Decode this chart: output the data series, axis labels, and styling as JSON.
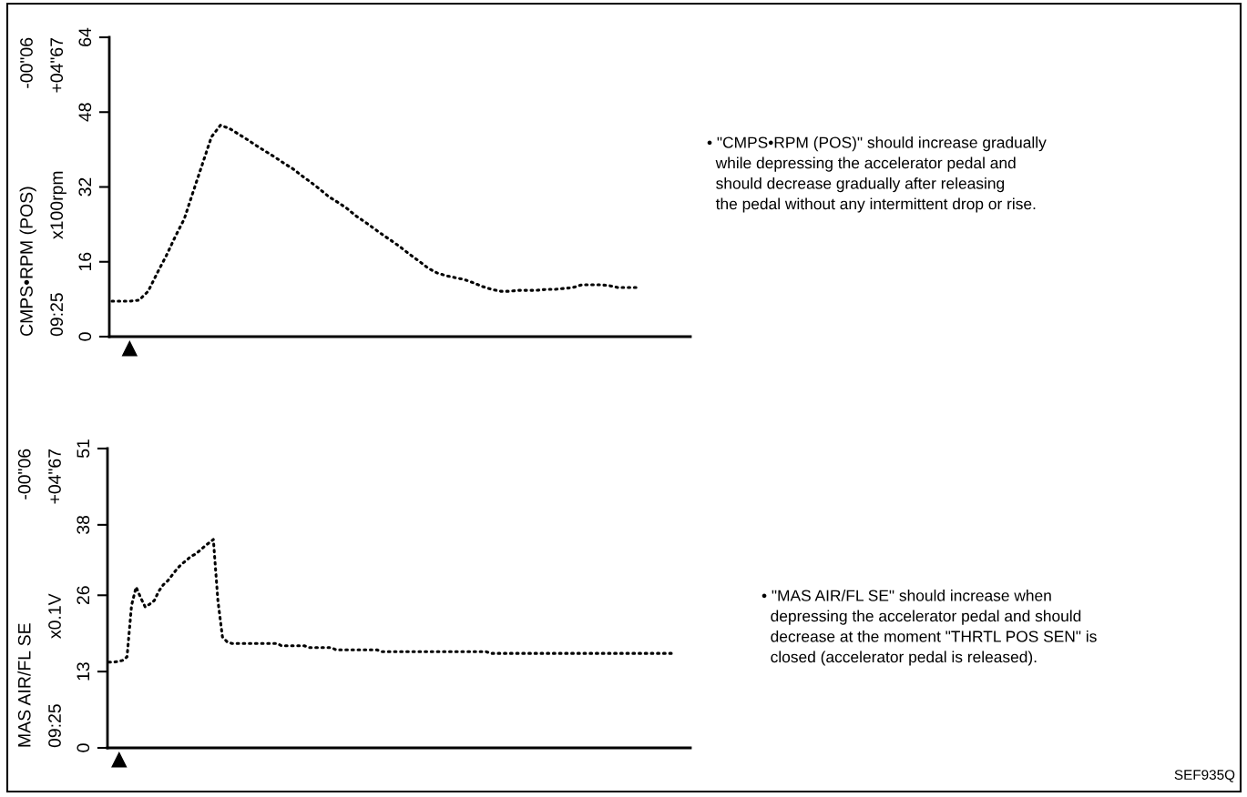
{
  "chart_data": [
    {
      "type": "line",
      "ylabel": "CMPS•RPM (POS)",
      "line_style": "dotted",
      "tick_labels": "y",
      "categories": [
        null,
        null,
        null,
        null,
        null,
        null,
        null,
        null,
        null,
        null,
        null,
        null,
        null,
        null,
        null,
        null,
        null,
        null,
        null,
        null,
        null,
        null,
        null,
        null,
        null,
        null,
        null,
        null,
        null,
        null,
        null,
        null,
        null,
        null,
        null,
        null,
        null,
        null,
        null,
        null,
        null,
        null,
        null,
        null,
        null,
        null,
        null,
        null,
        null,
        null,
        null,
        null,
        null,
        null,
        null,
        null,
        null,
        null,
        null,
        null,
        null,
        null,
        null,
        null,
        null
      ],
      "series": [
        {
          "color": "#000000",
          "values": [
            7.6,
            7.6,
            7.6,
            7.8,
            9.7,
            13.6,
            17.3,
            21.4,
            25.2,
            31.1,
            36.9,
            42.7,
            45.2,
            44.5,
            43.3,
            42.1,
            40.8,
            39.6,
            38.4,
            37.1,
            35.9,
            34.4,
            33.0,
            31.5,
            29.9,
            28.7,
            27.4,
            25.8,
            24.5,
            23.1,
            21.7,
            20.4,
            19.0,
            17.5,
            16.1,
            14.6,
            13.6,
            13.0,
            12.6,
            12.2,
            11.5,
            10.7,
            10.1,
            9.7,
            9.7,
            9.9,
            9.9,
            9.9,
            10.1,
            10.1,
            10.3,
            10.5,
            11.1,
            11.1,
            11.1,
            10.9,
            10.5,
            10.5,
            10.5,
            null,
            null,
            null,
            null,
            null,
            null
          ]
        }
      ],
      "ylim": [
        0,
        64
      ],
      "yticks": [
        0,
        16,
        32,
        48,
        64
      ],
      "annotations": [
        "-00\"06",
        "09:25",
        "x100rpm",
        "+04\"67",
        "• \"CMPS•RPM (POS)\" should increase gradually\n  while depressing the accelerator pedal and\n  should decrease gradually after releasing\n  the pedal without any intermittent drop or rise."
      ]
    },
    {
      "type": "line",
      "ylabel": "MAS AIR/FL SE",
      "line_style": "dotted",
      "tick_labels": "y",
      "categories": [
        null,
        null,
        null,
        null,
        null,
        null,
        null,
        null,
        null,
        null,
        null,
        null,
        null,
        null,
        null,
        null,
        null,
        null,
        null,
        null,
        null,
        null,
        null,
        null,
        null,
        null,
        null,
        null,
        null,
        null,
        null,
        null,
        null,
        null,
        null,
        null,
        null,
        null,
        null,
        null,
        null,
        null,
        null,
        null,
        null,
        null,
        null,
        null,
        null,
        null,
        null,
        null,
        null,
        null,
        null,
        null,
        null,
        null,
        null,
        null,
        null,
        null,
        null,
        null,
        null,
        null,
        null,
        null,
        null,
        null,
        null,
        null,
        null,
        null,
        null,
        null,
        null,
        null,
        null,
        null,
        null,
        null,
        null,
        null,
        null,
        null,
        null,
        null,
        null,
        null,
        null,
        null,
        null,
        null,
        null,
        null,
        null,
        null,
        null,
        null,
        null,
        null,
        null,
        null,
        null,
        null,
        null,
        null,
        null,
        null,
        null,
        null,
        null,
        null,
        null,
        null,
        null,
        null,
        null,
        null,
        null,
        null,
        null,
        null,
        null,
        null,
        null,
        null,
        null
      ],
      "series": [
        {
          "color": "#000000",
          "values": [
            14.6,
            14.6,
            14.7,
            14.9,
            15.5,
            24.3,
            27.4,
            25.6,
            24.0,
            24.5,
            25.1,
            26.7,
            27.8,
            28.5,
            29.5,
            30.5,
            31.3,
            31.9,
            32.6,
            33.0,
            33.6,
            34.3,
            34.9,
            35.5,
            25.1,
            18.9,
            18.1,
            17.8,
            17.8,
            17.8,
            17.8,
            17.8,
            17.8,
            17.8,
            17.8,
            17.8,
            17.8,
            17.8,
            17.4,
            17.4,
            17.4,
            17.4,
            17.4,
            17.4,
            17.1,
            17.1,
            17.1,
            17.1,
            17.1,
            17.1,
            16.7,
            16.7,
            16.7,
            16.7,
            16.7,
            16.7,
            16.7,
            16.7,
            16.7,
            16.7,
            16.4,
            16.4,
            16.4,
            16.4,
            16.4,
            16.4,
            16.4,
            16.4,
            16.4,
            16.4,
            16.4,
            16.4,
            16.4,
            16.4,
            16.4,
            16.4,
            16.4,
            16.4,
            16.4,
            16.4,
            16.4,
            16.4,
            16.4,
            16.4,
            16.1,
            16.1,
            16.1,
            16.1,
            16.1,
            16.1,
            16.1,
            16.1,
            16.1,
            16.1,
            16.1,
            16.1,
            16.1,
            16.1,
            16.1,
            16.1,
            16.1,
            16.1,
            16.1,
            16.1,
            16.1,
            16.1,
            16.1,
            16.1,
            16.1,
            16.1,
            16.1,
            16.1,
            16.1,
            16.1,
            16.1,
            16.1,
            16.1,
            16.1,
            16.1,
            16.1,
            16.1,
            16.1,
            16.1,
            16.1,
            16.1,
            null,
            null,
            null,
            null
          ]
        }
      ],
      "ylim": [
        0,
        51
      ],
      "yticks": [
        0,
        13,
        26,
        38,
        51
      ],
      "annotations": [
        "-00\"06",
        "09:25",
        "x0.1V",
        "+04\"67",
        "• \"MAS AIR/FL SE\" should increase when\n  depressing the accelerator pedal and should\n  decrease at the moment \"THRTL POS SEN\" is\n  closed (accelerator pedal is released).",
        "SEF935Q"
      ]
    }
  ]
}
